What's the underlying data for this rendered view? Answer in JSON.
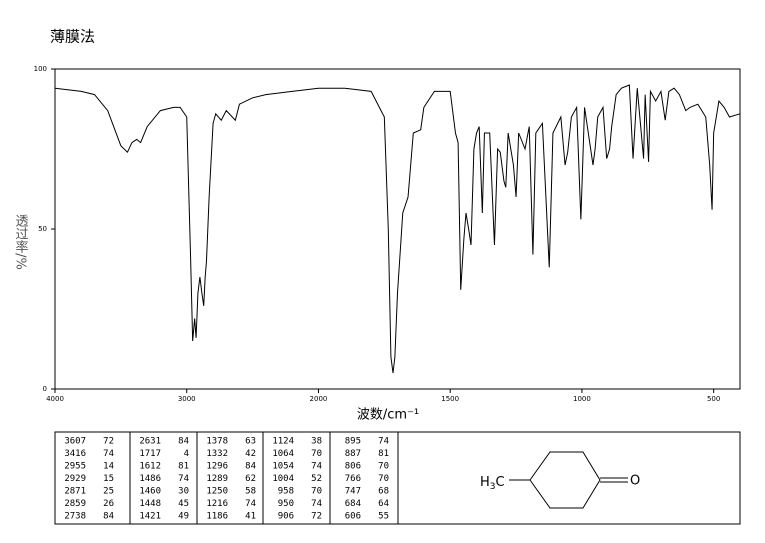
{
  "chart_data": {
    "type": "line",
    "title": "薄膜法",
    "x_label": "波数/cm⁻¹",
    "y_label": "透过率/%",
    "xlim": [
      4000,
      400
    ],
    "x_scale_break": 2000,
    "xticks": [
      4000,
      3000,
      2000,
      1500,
      1000,
      500
    ],
    "ylim": [
      0,
      100
    ],
    "yticks": [
      0,
      50,
      100
    ],
    "series": [
      {
        "color": "#000000",
        "x": [
          4000,
          3800,
          3700,
          3600,
          3500,
          3450,
          3416,
          3380,
          3350,
          3300,
          3200,
          3100,
          3050,
          3000,
          2970,
          2955,
          2940,
          2929,
          2915,
          2900,
          2885,
          2871,
          2860,
          2850,
          2830,
          2800,
          2780,
          2738,
          2700,
          2631,
          2600,
          2500,
          2400,
          2200,
          2000,
          1900,
          1800,
          1750,
          1735,
          1725,
          1717,
          1710,
          1700,
          1680,
          1660,
          1640,
          1612,
          1600,
          1560,
          1500,
          1480,
          1470,
          1460,
          1448,
          1440,
          1430,
          1421,
          1410,
          1400,
          1390,
          1378,
          1370,
          1350,
          1332,
          1320,
          1310,
          1296,
          1289,
          1280,
          1260,
          1250,
          1240,
          1216,
          1200,
          1186,
          1175,
          1150,
          1124,
          1110,
          1080,
          1064,
          1054,
          1040,
          1020,
          1004,
          990,
          958,
          950,
          940,
          920,
          906,
          895,
          887,
          870,
          850,
          820,
          806,
          790,
          766,
          760,
          747,
          740,
          720,
          700,
          684,
          670,
          650,
          630,
          606,
          590,
          560,
          530,
          515,
          506,
          500,
          480,
          460,
          440,
          400
        ],
        "values": [
          94,
          93,
          92,
          87,
          76,
          74,
          77,
          78,
          77,
          82,
          87,
          88,
          88,
          85,
          40,
          15,
          22,
          16,
          30,
          35,
          30,
          26,
          35,
          40,
          60,
          83,
          86,
          84,
          87,
          84,
          89,
          91,
          92,
          93,
          94,
          94,
          93,
          85,
          50,
          10,
          5,
          10,
          30,
          55,
          60,
          80,
          81,
          88,
          93,
          93,
          80,
          77,
          31,
          47,
          55,
          50,
          45,
          75,
          80,
          82,
          55,
          80,
          80,
          45,
          75,
          74,
          65,
          63,
          80,
          70,
          60,
          80,
          75,
          82,
          42,
          80,
          83,
          38,
          80,
          85,
          70,
          74,
          85,
          88,
          53,
          88,
          70,
          75,
          85,
          88,
          72,
          75,
          82,
          92,
          94,
          95,
          72,
          94,
          72,
          92,
          71,
          93,
          90,
          93,
          84,
          93,
          94,
          92,
          87,
          88,
          89,
          85,
          70,
          56,
          80,
          90,
          88,
          85,
          86
        ]
      }
    ]
  },
  "peak_table": [
    [
      [
        3607,
        72
      ],
      [
        3416,
        74
      ],
      [
        2955,
        14
      ],
      [
        2929,
        15
      ],
      [
        2871,
        25
      ],
      [
        2859,
        26
      ],
      [
        2738,
        84
      ]
    ],
    [
      [
        2631,
        84
      ],
      [
        1717,
        4
      ],
      [
        1612,
        81
      ],
      [
        1486,
        74
      ],
      [
        1460,
        30
      ],
      [
        1448,
        45
      ],
      [
        1421,
        49
      ]
    ],
    [
      [
        1378,
        63
      ],
      [
        1332,
        42
      ],
      [
        1296,
        84
      ],
      [
        1289,
        62
      ],
      [
        1250,
        58
      ],
      [
        1216,
        74
      ],
      [
        1186,
        41
      ]
    ],
    [
      [
        1124,
        38
      ],
      [
        1064,
        70
      ],
      [
        1054,
        74
      ],
      [
        1004,
        52
      ],
      [
        958,
        70
      ],
      [
        950,
        74
      ],
      [
        906,
        72
      ]
    ],
    [
      [
        895,
        74
      ],
      [
        887,
        81
      ],
      [
        806,
        70
      ],
      [
        766,
        70
      ],
      [
        747,
        68
      ],
      [
        684,
        64
      ],
      [
        606,
        55
      ]
    ]
  ],
  "structure": {
    "methyl": [
      "H",
      "3",
      "C"
    ],
    "oxygen": "O"
  }
}
